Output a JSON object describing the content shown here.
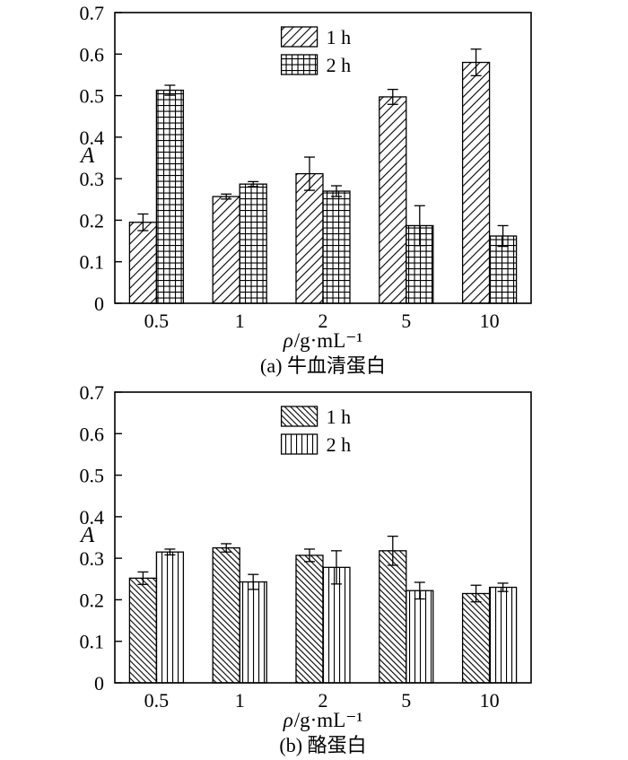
{
  "page": {
    "background": "#ffffff",
    "ink": "#000000"
  },
  "chart_data": [
    {
      "id": "a",
      "type": "bar",
      "caption": "(a) 牛血清蛋白",
      "ylabel": "A",
      "xlabel_rho": "ρ",
      "xlabel_rest": "/g·mL⁻¹",
      "ylim": [
        0,
        0.7
      ],
      "yticks": [
        "0",
        "0.1",
        "0.2",
        "0.3",
        "0.4",
        "0.5",
        "0.6",
        "0.7"
      ],
      "categories": [
        "0.5",
        "1",
        "2",
        "5",
        "10"
      ],
      "grid": false,
      "legend_position": "top-center-inside",
      "series": [
        {
          "name": "1 h",
          "hatch": "diagonal-forward",
          "values": [
            0.195,
            0.257,
            0.312,
            0.497,
            0.58
          ],
          "errors": [
            0.02,
            0.006,
            0.04,
            0.018,
            0.032
          ]
        },
        {
          "name": "2 h",
          "hatch": "grid",
          "values": [
            0.513,
            0.287,
            0.27,
            0.187,
            0.162
          ],
          "errors": [
            0.012,
            0.006,
            0.013,
            0.048,
            0.025
          ]
        }
      ]
    },
    {
      "id": "b",
      "type": "bar",
      "caption": "(b) 酪蛋白",
      "ylabel": "A",
      "xlabel_rho": "ρ",
      "xlabel_rest": "/g·mL⁻¹",
      "ylim": [
        0,
        0.7
      ],
      "yticks": [
        "0",
        "0.1",
        "0.2",
        "0.3",
        "0.4",
        "0.5",
        "0.6",
        "0.7"
      ],
      "categories": [
        "0.5",
        "1",
        "2",
        "5",
        "10"
      ],
      "grid": false,
      "legend_position": "top-center-inside",
      "series": [
        {
          "name": "1 h",
          "hatch": "diagonal-back",
          "values": [
            0.252,
            0.325,
            0.307,
            0.318,
            0.215
          ],
          "errors": [
            0.015,
            0.01,
            0.015,
            0.035,
            0.02
          ]
        },
        {
          "name": "2 h",
          "hatch": "vertical",
          "values": [
            0.315,
            0.243,
            0.278,
            0.222,
            0.23
          ],
          "errors": [
            0.007,
            0.018,
            0.04,
            0.02,
            0.01
          ]
        }
      ]
    }
  ]
}
